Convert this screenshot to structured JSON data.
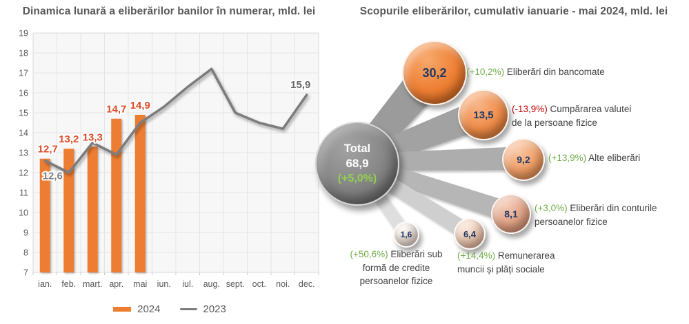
{
  "colors": {
    "title": "#595959",
    "axis": "#595959",
    "bar": "#ED7D31",
    "bar_label": "#DC4A26",
    "line": "#7C7C7C",
    "line_label_first": "#7F7F7F",
    "line_label_last": "#666666",
    "green": "#70AD47",
    "bright_green": "#92D050",
    "red": "#C00000",
    "bubble_number": "#1F3864",
    "label_text": "#3F3F3F"
  },
  "chart_data": [
    {
      "type": "bar",
      "title": "Dinamica lunară a eliberărilor banilor în numerar, mld. lei",
      "categories": [
        "ian.",
        "feb.",
        "mart.",
        "apr.",
        "mai",
        "iun.",
        "iul.",
        "aug.",
        "sept.",
        "oct.",
        "noi.",
        "dec."
      ],
      "ylim": [
        7,
        19
      ],
      "ytick_step": 1,
      "grid": true,
      "legend_position": "bottom",
      "series": [
        {
          "name": "2024",
          "kind": "bar",
          "color": "#ED7D31",
          "values": [
            12.7,
            13.2,
            13.3,
            14.7,
            14.9,
            null,
            null,
            null,
            null,
            null,
            null,
            null
          ],
          "labels_shown": "all"
        },
        {
          "name": "2023",
          "kind": "line",
          "color": "#7C7C7C",
          "values": [
            12.6,
            12.0,
            13.5,
            12.9,
            14.5,
            15.3,
            16.3,
            17.2,
            15.0,
            14.5,
            14.2,
            15.9
          ],
          "labeled_points": [
            0,
            11
          ]
        }
      ]
    },
    {
      "type": "bubble",
      "title": "Scopurile eliberărilor, cumulativ ianuarie - mai 2024, mld. lei",
      "center_bubble": {
        "title": "Total",
        "value": "68,9",
        "change": "(+5,0%)"
      },
      "bubbles": [
        {
          "value": "30,2",
          "change": "(+10,2%)",
          "trend": "up",
          "label_lines": [
            "Eliberări din bancomate"
          ]
        },
        {
          "value": "13,5",
          "change": "(-13,9%)",
          "trend": "down",
          "label_lines": [
            "Cumpărarea valutei",
            "de la persoane fizice"
          ]
        },
        {
          "value": "9,2",
          "change": "(+13,9%)",
          "trend": "up",
          "label_lines": [
            "Alte eliberări"
          ]
        },
        {
          "value": "8,1",
          "change": "(+3,0%)",
          "trend": "up",
          "label_lines": [
            "Eliberări din conturile",
            "persoanelor fizice"
          ]
        },
        {
          "value": "6,4",
          "change": "(+14,4%)",
          "trend": "up",
          "label_lines": [
            "Remunerarea",
            "muncii și plăți sociale"
          ]
        },
        {
          "value": "1,6",
          "change": "(+50,6%)",
          "trend": "up",
          "label_lines": [
            "Eliberări sub",
            "formă de credite",
            "persoanelor fizice"
          ]
        }
      ]
    }
  ]
}
